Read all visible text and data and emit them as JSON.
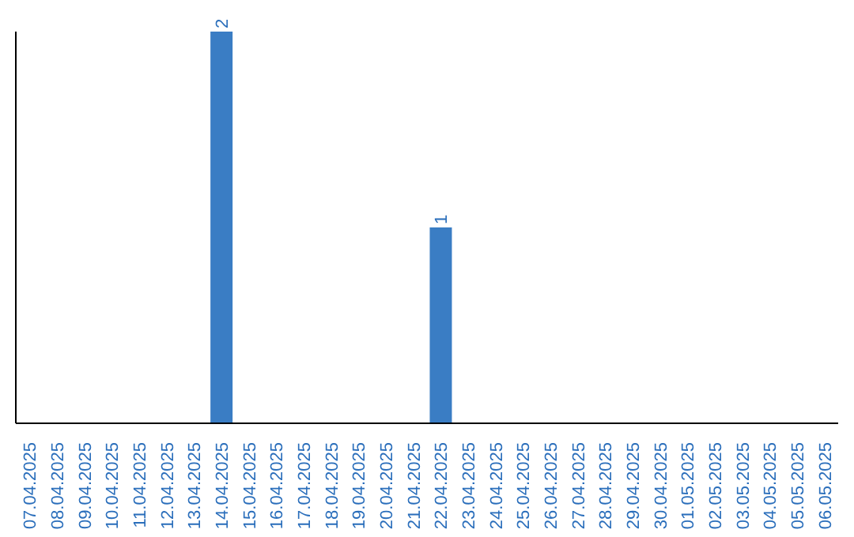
{
  "chart_data": {
    "type": "bar",
    "categories": [
      "07.04.2025",
      "08.04.2025",
      "09.04.2025",
      "10.04.2025",
      "11.04.2025",
      "12.04.2025",
      "13.04.2025",
      "14.04.2025",
      "15.04.2025",
      "16.04.2025",
      "17.04.2025",
      "18.04.2025",
      "19.04.2025",
      "20.04.2025",
      "21.04.2025",
      "22.04.2025",
      "23.04.2025",
      "24.04.2025",
      "25.04.2025",
      "26.04.2025",
      "27.04.2025",
      "28.04.2025",
      "29.04.2025",
      "30.04.2025",
      "01.05.2025",
      "02.05.2025",
      "03.05.2025",
      "04.05.2025",
      "05.05.2025",
      "06.05.2025"
    ],
    "values": [
      0,
      0,
      0,
      0,
      0,
      0,
      0,
      2,
      0,
      0,
      0,
      0,
      0,
      0,
      0,
      1,
      0,
      0,
      0,
      0,
      0,
      0,
      0,
      0,
      0,
      0,
      0,
      0,
      0,
      0
    ],
    "value_labels": [
      null,
      null,
      null,
      null,
      null,
      null,
      null,
      "2",
      null,
      null,
      null,
      null,
      null,
      null,
      null,
      "1",
      null,
      null,
      null,
      null,
      null,
      null,
      null,
      null,
      null,
      null,
      null,
      null,
      null,
      null
    ],
    "color": "#3a7dc4",
    "ylim": [
      0,
      2
    ],
    "grid": false,
    "legend": false
  }
}
